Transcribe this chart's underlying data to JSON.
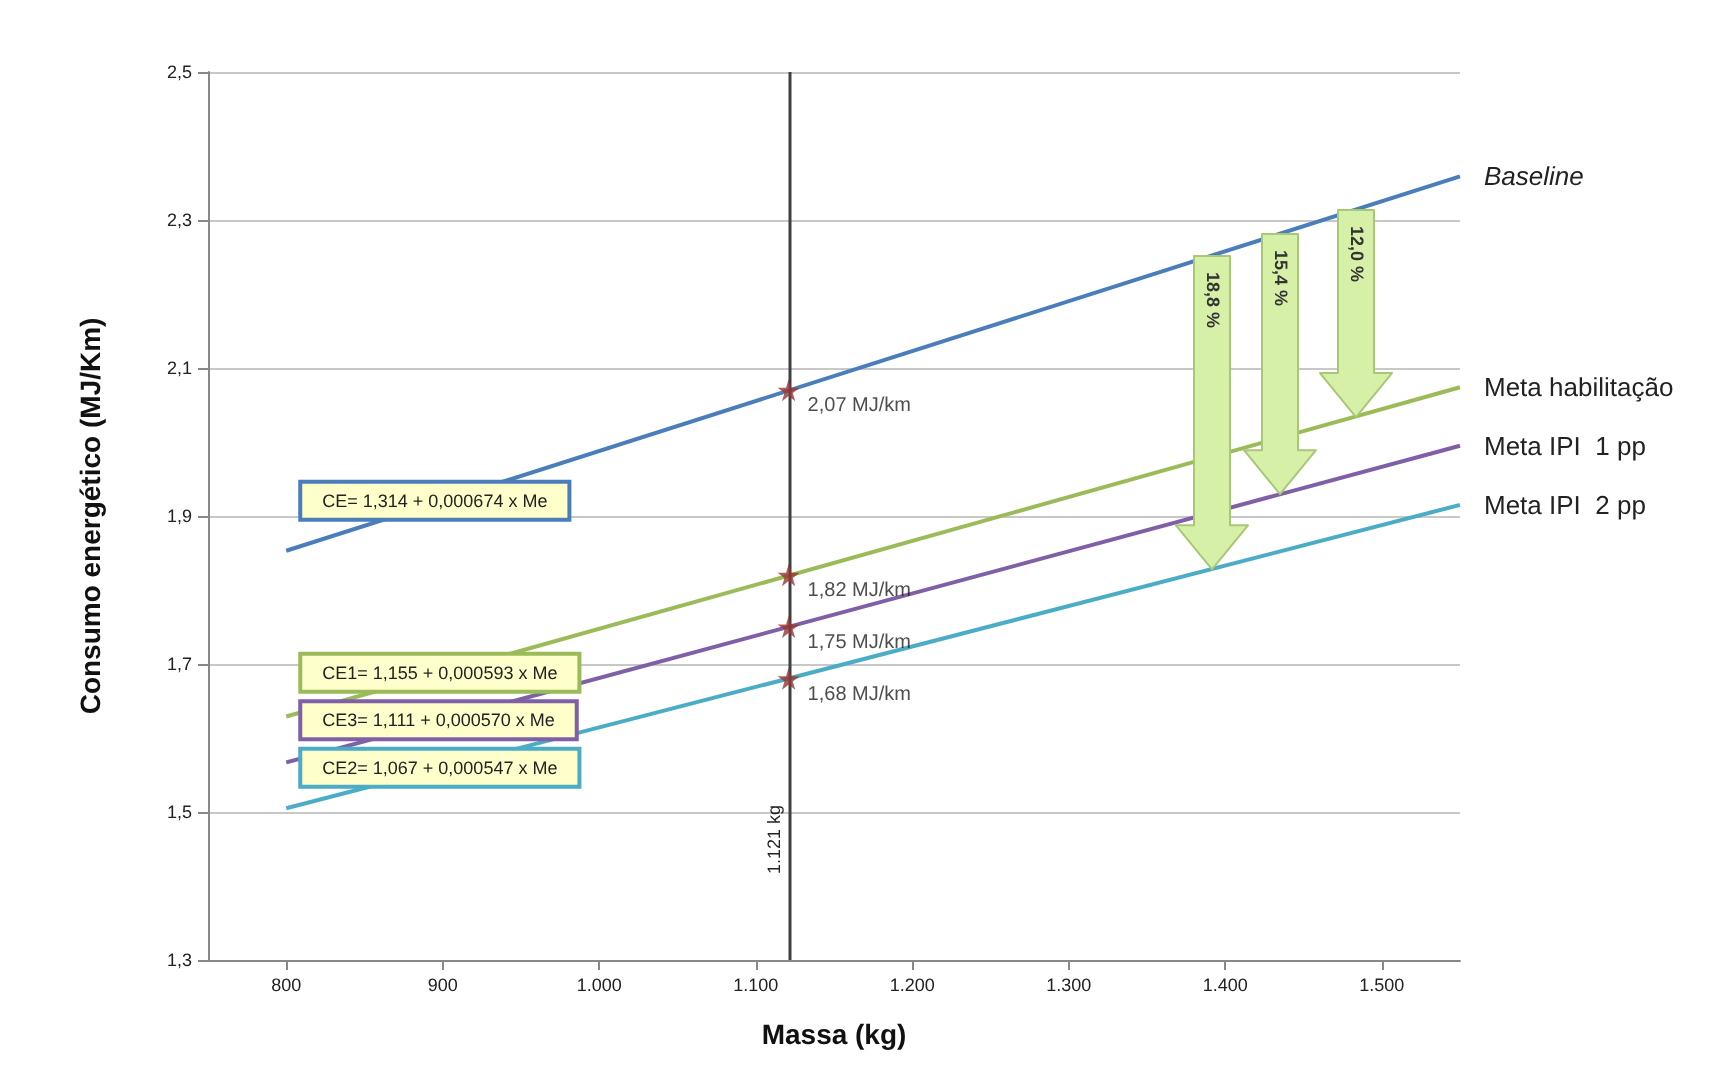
{
  "chart_data": {
    "type": "line",
    "xlabel": "Massa (kg)",
    "ylabel": "Consumo energético (MJ/Km)",
    "xlim": [
      750,
      1550
    ],
    "xticks": [
      800,
      900,
      {
        "value": 1000,
        "label": "1.000"
      },
      {
        "value": 1100,
        "label": "1.100"
      },
      {
        "value": 1200,
        "label": "1.200"
      },
      {
        "value": 1300,
        "label": "1.300"
      },
      {
        "value": 1400,
        "label": "1.400"
      },
      {
        "value": 1500,
        "label": "1.500"
      }
    ],
    "ylim": [
      1.3,
      2.5
    ],
    "yticks": [
      {
        "value": 1.3,
        "label": "1,3"
      },
      {
        "value": 1.5,
        "label": "1,5"
      },
      {
        "value": 1.7,
        "label": "1,7"
      },
      {
        "value": 1.9,
        "label": "1,9"
      },
      {
        "value": 2.1,
        "label": "2,1"
      },
      {
        "value": 2.3,
        "label": "2,3"
      },
      {
        "value": 2.5,
        "label": "2,5"
      }
    ],
    "grid": "y",
    "marker": "none",
    "series": [
      {
        "name": "Baseline",
        "color": "#4a7ebb",
        "x": [
          800,
          1550
        ],
        "values": [
          1.853,
          2.359
        ]
      },
      {
        "name": "Meta habilitação",
        "color": "#9bbb59",
        "x": [
          800,
          1550
        ],
        "values": [
          1.629,
          2.074
        ]
      },
      {
        "name": "Meta IPI  1 pp",
        "color": "#7f5fa6",
        "x": [
          800,
          1550
        ],
        "values": [
          1.567,
          1.995
        ]
      },
      {
        "name": "Meta IPI  2 pp",
        "color": "#4bacc6",
        "x": [
          800,
          1550
        ],
        "values": [
          1.505,
          1.915
        ]
      },
      {
        "type": "scatter",
        "marker": "star",
        "color": "#953735",
        "x": [
          1121,
          1121,
          1121,
          1121
        ],
        "values": [
          2.07,
          1.82,
          1.75,
          1.68
        ],
        "value_labels": [
          "2,07 MJ/km",
          "1,82 MJ/km",
          "1,75 MJ/km",
          "1,68 MJ/km"
        ]
      }
    ],
    "ref_lines": [
      {
        "axis": "x",
        "value": 1121,
        "label": "1.121 kg",
        "color": "#404040"
      }
    ],
    "annotations": [
      "CE= 1,314 + 0,000674 x Me",
      "CE1= 1,155 + 0,000593 x Me",
      "CE3= 1,111 + 0,000570 x Me",
      "CE2= 1,067 + 0,000547 x Me",
      {
        "text": "18,8 %",
        "x": 1392,
        "y": 2.252
      },
      {
        "text": "15,4 %",
        "x": 1435,
        "y": 2.281
      },
      {
        "text": "12,0 %",
        "x": 1483,
        "y": 2.314
      }
    ]
  }
}
